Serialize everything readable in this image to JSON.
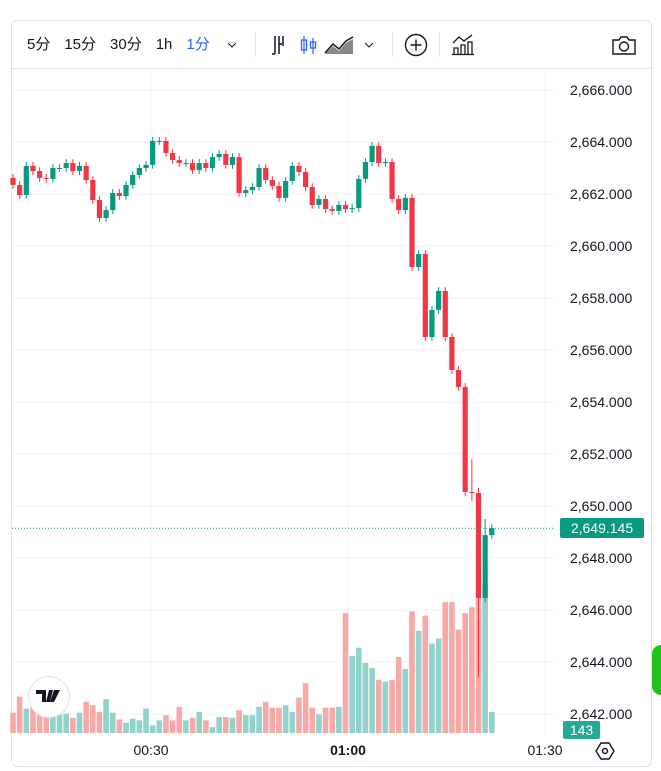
{
  "toolbar": {
    "intervals": [
      "5分",
      "15分",
      "30分",
      "1h",
      "1分"
    ],
    "active_interval": "1分"
  },
  "price_axis": {
    "ticks": [
      "2,666.000",
      "2,664.000",
      "2,662.000",
      "2,660.000",
      "2,658.000",
      "2,656.000",
      "2,654.000",
      "2,652.000",
      "2,650.000",
      "2,648.000",
      "2,646.000",
      "2,644.000",
      "2,642.000"
    ],
    "tick_values": [
      2666,
      2664,
      2662,
      2660,
      2658,
      2656,
      2654,
      2652,
      2650,
      2648,
      2646,
      2644,
      2642
    ],
    "current_price": "2,649.145",
    "current_price_value": 2649.145,
    "volume_label": "143"
  },
  "time_axis": {
    "labels": [
      "00:30",
      "01:00",
      "01:30"
    ]
  },
  "colors": {
    "up": "#089981",
    "down": "#f23645",
    "up_vol": "#92d2cc",
    "down_vol": "#f7a9a7",
    "accent": "#2962ff"
  },
  "chart_data": {
    "type": "candlestick",
    "interval": "1分",
    "first_open": 2662.62,
    "closes": [
      2662.35,
      2661.96,
      2663.08,
      2662.88,
      2662.62,
      2662.58,
      2663.0,
      2663.0,
      2663.19,
      2662.88,
      2663.08,
      2662.54,
      2661.77,
      2661.08,
      2661.38,
      2662.04,
      2661.92,
      2662.35,
      2662.73,
      2663.0,
      2663.12,
      2664.04,
      2664.04,
      2663.58,
      2663.31,
      2663.19,
      2663.19,
      2662.92,
      2663.19,
      2663.0,
      2663.42,
      2663.54,
      2663.12,
      2663.42,
      2662.04,
      2662.15,
      2662.27,
      2663.0,
      2662.54,
      2662.31,
      2661.85,
      2662.5,
      2663.08,
      2662.85,
      2662.27,
      2661.58,
      2661.81,
      2661.42,
      2661.35,
      2661.58,
      2661.42,
      2661.46,
      2662.58,
      2663.23,
      2663.85,
      2663.19,
      2663.23,
      2661.81,
      2661.38,
      2661.85,
      2659.19,
      2659.69,
      2656.5,
      2657.54,
      2658.27,
      2656.5,
      2655.23,
      2654.58,
      2650.54,
      2650.5,
      2646.46,
      2648.88,
      2649.15
    ],
    "wick_overrides": {
      "69": [
        2651.8,
        2650.2
      ],
      "70": [
        2650.7,
        2643.4
      ],
      "71": [
        2649.5,
        2646.3
      ]
    },
    "volumes": [
      138,
      247,
      166,
      189,
      143,
      121,
      132,
      126,
      132,
      103,
      138,
      212,
      189,
      143,
      230,
      138,
      92,
      69,
      98,
      86,
      166,
      52,
      86,
      121,
      86,
      178,
      86,
      103,
      143,
      86,
      40,
      109,
      109,
      103,
      155,
      121,
      121,
      178,
      212,
      172,
      172,
      189,
      143,
      241,
      339,
      172,
      126,
      172,
      172,
      178,
      815,
      525,
      580,
      476,
      442,
      362,
      350,
      362,
      517,
      436,
      827,
      695,
      798,
      608,
      643,
      890,
      890,
      703,
      815,
      855,
      1128,
      1013,
      143
    ]
  }
}
